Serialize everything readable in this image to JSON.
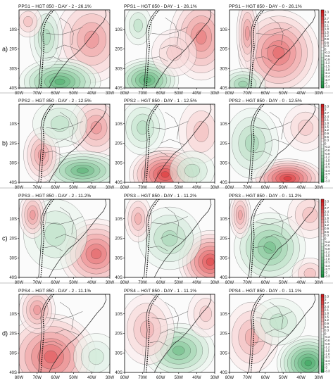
{
  "figure": {
    "rows": [
      {
        "label": "a)",
        "panels": [
          {
            "title": "PPS1 – HGT 850 - DAY - 2 - 26.1%",
            "pattern": "pps1-day2"
          },
          {
            "title": "PPS1 – HGT 850 - DAY - 1 - 26.1%",
            "pattern": "pps1-day1"
          },
          {
            "title": "PPS1 – HGT 850 - DAY - 0 - 26.1%",
            "pattern": "pps1-day0"
          }
        ]
      },
      {
        "label": "b)",
        "panels": [
          {
            "title": "PPS2 – HGT 850 - DAY - 2 - 12.5%",
            "pattern": "pps2-day2"
          },
          {
            "title": "PPS2 – HGT 850 - DAY - 1 - 12.5%",
            "pattern": "pps2-day1"
          },
          {
            "title": "PPS2 – HGT 850 - DAY - 0 - 12.5%",
            "pattern": "pps2-day0"
          }
        ]
      },
      {
        "label": "c)",
        "panels": [
          {
            "title": "PPS3 – HGT 850 - DAY - 2 - 11.2%",
            "pattern": "pps3-day2"
          },
          {
            "title": "PPS3 – HGT 850 - DAY - 1 - 11.2%",
            "pattern": "pps3-day1"
          },
          {
            "title": "PPS3 – HGT 850 - DAY - 0 - 11.2%",
            "pattern": "pps3-day0"
          }
        ]
      },
      {
        "label": "d)",
        "panels": [
          {
            "title": "PPS4 – HGT 850 - DAY - 2 - 11.1%",
            "pattern": "pps4-day2"
          },
          {
            "title": "PPS4 – HGT 850 - DAY - 1 - 11.1%",
            "pattern": "pps4-day1"
          },
          {
            "title": "PPS4 – HGT 850 - DAY - 0 - 11.1%",
            "pattern": "pps4-day0"
          }
        ]
      }
    ],
    "lat_ticks": [
      "10S",
      "20S",
      "30S",
      "40S"
    ],
    "lon_ticks": [
      "80W",
      "70W",
      "60W",
      "50W",
      "40W",
      "30W"
    ],
    "colorbar": {
      "labels": [
        "3.3",
        "3",
        "2.7",
        "2.4",
        "2.1",
        "1.8",
        "1.5",
        "1.2",
        "0.9",
        "0.6",
        "0.3",
        "0",
        "-0.3",
        "-0.6",
        "-0.9",
        "-1.2",
        "-1.5",
        "-1.8",
        "-2.1",
        "-2.4",
        "-2.7",
        "-3",
        "-3.3"
      ],
      "positive_color": "#d7191c",
      "neutral_color": "#ffffff",
      "negative_color": "#1a9641"
    }
  }
}
